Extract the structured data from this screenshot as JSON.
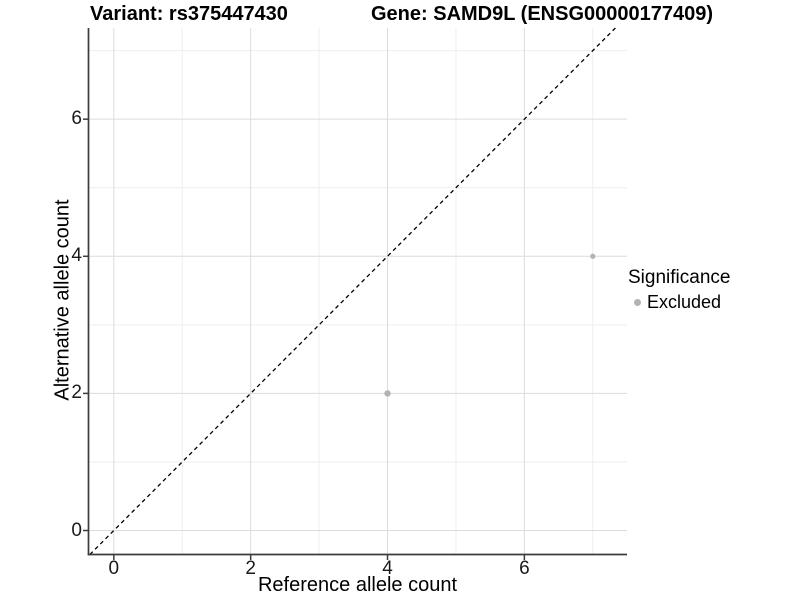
{
  "chart_data": {
    "type": "scatter",
    "title_left": "Variant: rs375447430",
    "title_right": "Gene: SAMD9L (ENSG00000177409)",
    "xlabel": "Reference allele count",
    "ylabel": "Alternative allele count",
    "xlim": [
      -0.37,
      7.5
    ],
    "ylim": [
      -0.35,
      7.33
    ],
    "x_ticks": [
      0,
      2,
      4,
      6
    ],
    "y_ticks": [
      0,
      2,
      4,
      6
    ],
    "x_minor_ticks": [
      1,
      3,
      5,
      7
    ],
    "y_minor_ticks": [
      1,
      3,
      5,
      7
    ],
    "grid": true,
    "identity_line": {
      "equation": "y = x",
      "style": "dashed",
      "color": "#000000"
    },
    "series": [
      {
        "name": "Excluded",
        "color": "#b3b3b3",
        "points": [
          {
            "x": 4,
            "y": 2,
            "r": 3.2
          },
          {
            "x": 7,
            "y": 4,
            "r": 2.6
          }
        ]
      }
    ],
    "legend": {
      "title": "Significance",
      "position": "right",
      "items": [
        {
          "label": "Excluded",
          "color": "#b3b3b3"
        }
      ]
    },
    "colors": {
      "axis": "#3c3c3c",
      "tick_label": "#1a1a1a",
      "grid_major": "#dcdcdc",
      "grid_minor": "#eeeeee",
      "background": "#ffffff"
    }
  }
}
